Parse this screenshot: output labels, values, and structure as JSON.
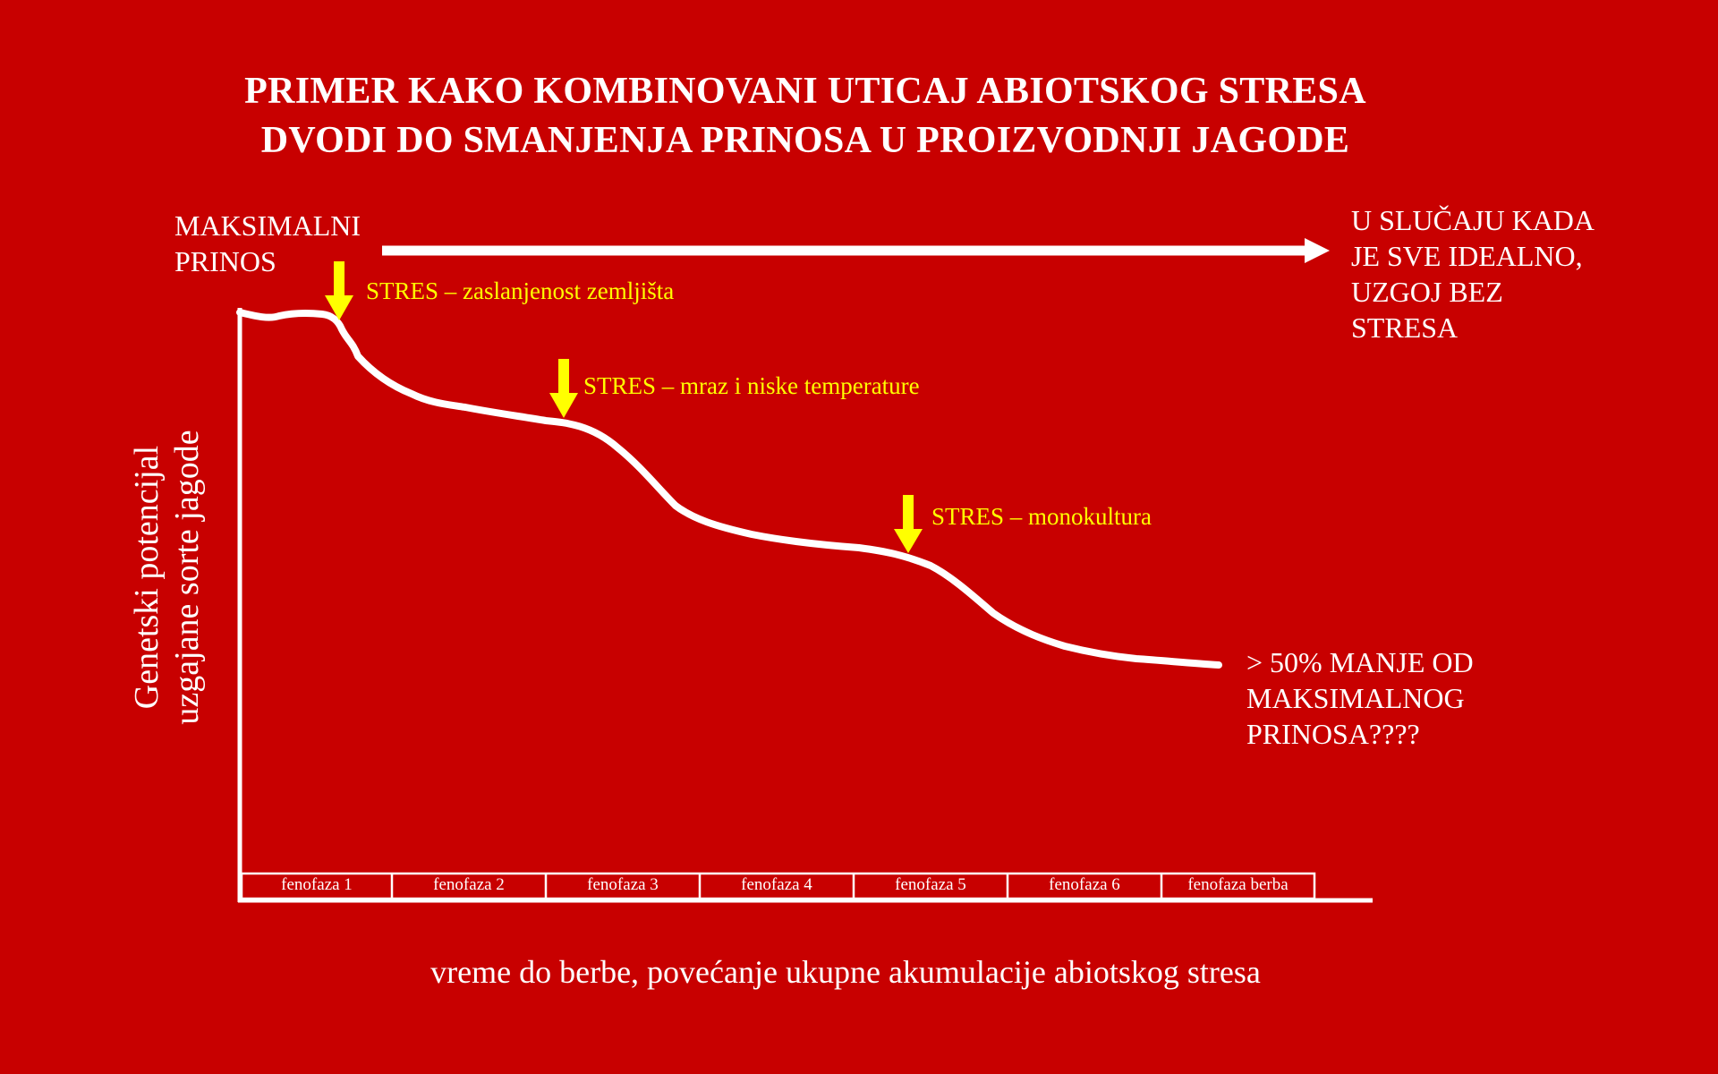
{
  "title": {
    "line1": "PRIMER KAKO KOMBINOVANI UTICAJ ABIOTSKOG STRESA",
    "line2": "DVODI DO SMANJENJA PRINOSA U PROIZVODNJI JAGODE"
  },
  "max_yield": {
    "line1": "MAKSIMALNI",
    "line2": "PRINOS"
  },
  "ideal": {
    "line1": "U SLUČAJU KADA",
    "line2": "JE SVE IDEALNO,",
    "line3": "UZGOJ BEZ",
    "line4": "STRESA"
  },
  "stresses": [
    "STRES – zaslanjenost zemljišta",
    "STRES – mraz i niske temperature",
    "STRES – monokultura"
  ],
  "result": {
    "line1": "> 50% MANJE OD",
    "line2": "MAKSIMALNOG",
    "line3": "PRINOSA????"
  },
  "y_axis": {
    "line1": "Genetski potencijal",
    "line2": "uzgajane sorte jagode"
  },
  "x_axis": "vreme do berbe, povećanje ukupne akumulacije abiotskog stresa",
  "phases": [
    "fenofaza 1",
    "fenofaza 2",
    "fenofaza 3",
    "fenofaza 4",
    "fenofaza 5",
    "fenofaza 6",
    "fenofaza berba"
  ],
  "colors": {
    "background": "#c80000",
    "line": "#ffffff",
    "stress_arrow": "#ffff00"
  }
}
